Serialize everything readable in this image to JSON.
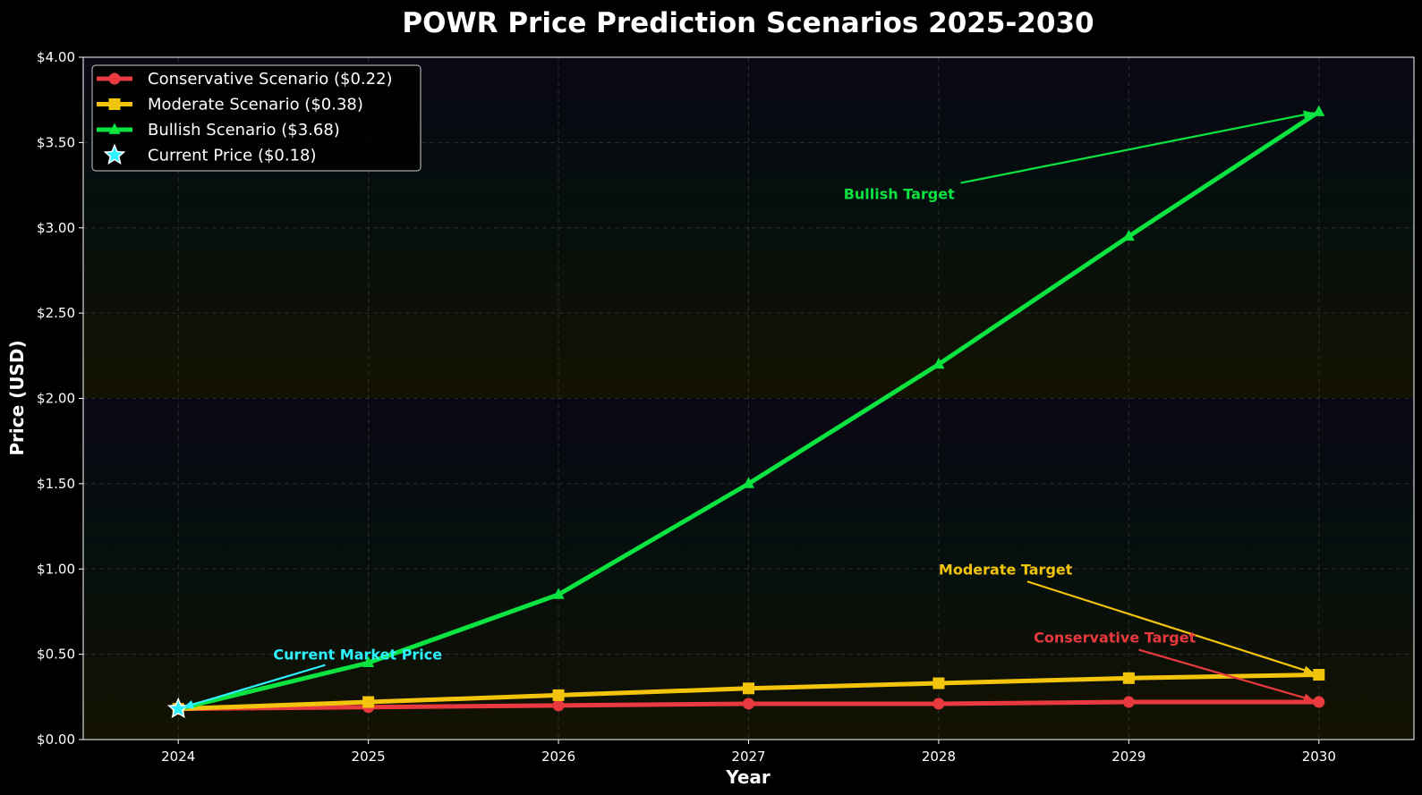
{
  "chart_data": {
    "type": "line",
    "title": "POWR Price Prediction Scenarios 2025-2030",
    "xlabel": "Year",
    "ylabel": "Price (USD)",
    "x": [
      2024,
      2025,
      2026,
      2027,
      2028,
      2029,
      2030
    ],
    "xlim": [
      2023.5,
      2030.5
    ],
    "ylim": [
      0,
      4
    ],
    "x_ticks": [
      "2024",
      "2025",
      "2026",
      "2027",
      "2028",
      "2029",
      "2030"
    ],
    "y_ticks": [
      {
        "value": 0,
        "label": "$0.00"
      },
      {
        "value": 0.5,
        "label": "$0.50"
      },
      {
        "value": 1,
        "label": "$1.00"
      },
      {
        "value": 1.5,
        "label": "$1.50"
      },
      {
        "value": 2,
        "label": "$2.00"
      },
      {
        "value": 2.5,
        "label": "$2.50"
      },
      {
        "value": 3,
        "label": "$3.00"
      },
      {
        "value": 3.5,
        "label": "$3.50"
      },
      {
        "value": 4,
        "label": "$4.00"
      }
    ],
    "grid": true,
    "legend_position": "top-left",
    "series": [
      {
        "name": "Conservative Scenario ($0.22)",
        "color": "#e8393e",
        "marker": "circle",
        "values": [
          0.18,
          0.19,
          0.2,
          0.21,
          0.21,
          0.22,
          0.22
        ]
      },
      {
        "name": "Moderate Scenario ($0.38)",
        "color": "#f2c40c",
        "marker": "square",
        "values": [
          0.18,
          0.22,
          0.26,
          0.3,
          0.33,
          0.36,
          0.38
        ]
      },
      {
        "name": "Bullish Scenario ($3.68)",
        "color": "#0ae340",
        "marker": "triangle",
        "values": [
          0.18,
          0.45,
          0.85,
          1.5,
          2.2,
          2.95,
          3.68
        ]
      }
    ],
    "current_price": {
      "name": "Current Price ($0.18)",
      "x": 2024,
      "y": 0.18,
      "color": "#2ef2ff",
      "marker": "star"
    },
    "annotations": [
      {
        "text": "Bullish Target",
        "color": "#0ae340",
        "text_x": 2027.5,
        "text_y": 3.2,
        "target_x": 2030,
        "target_y": 3.68
      },
      {
        "text": "Moderate Target",
        "color": "#f2c40c",
        "text_x": 2028.0,
        "text_y": 1.0,
        "target_x": 2030,
        "target_y": 0.38
      },
      {
        "text": "Conservative Target",
        "color": "#e8393e",
        "text_x": 2028.5,
        "text_y": 0.6,
        "target_x": 2030,
        "target_y": 0.22
      },
      {
        "text": "Current Market Price",
        "color": "#2ef2ff",
        "text_x": 2024.5,
        "text_y": 0.5,
        "target_x": 2024,
        "target_y": 0.18
      }
    ]
  }
}
